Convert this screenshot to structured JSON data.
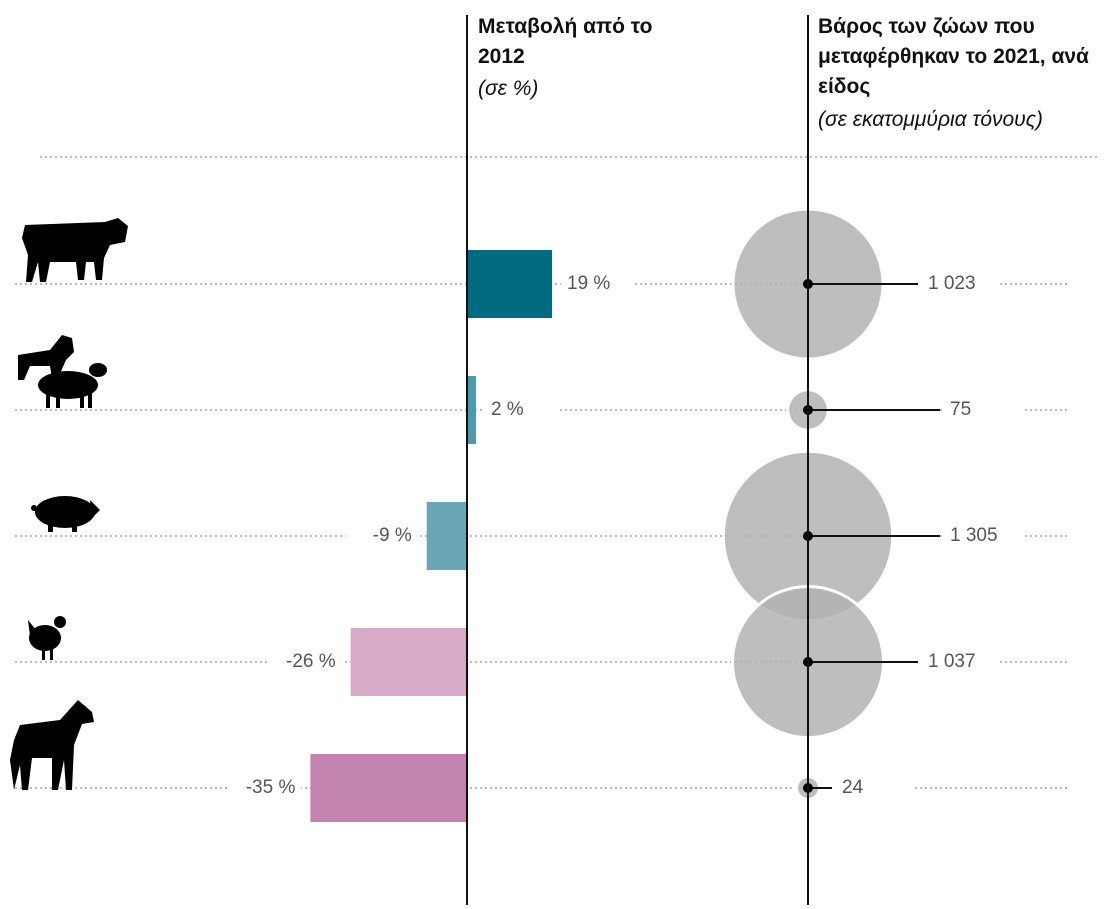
{
  "chart_data": [
    {
      "type": "bar",
      "orientation": "horizontal",
      "title": "Μεταβολή από το 2012",
      "subtitle": "(σε %)",
      "categories": [
        null,
        null,
        null,
        null,
        null
      ],
      "values": [
        19,
        2,
        -9,
        -26,
        -35
      ],
      "value_labels": [
        "19 %",
        "2 %",
        "-9 %",
        "-26 %",
        "-35 %"
      ],
      "colors": [
        "#006a80",
        "#4a9aab",
        "#6aa7b5",
        "#d7aac8",
        "#c283ae"
      ],
      "xlim": [
        -40,
        40
      ]
    },
    {
      "type": "bubble",
      "title": "Βάρος των ζώων που μεταφέρθηκαν το 2021, ανά είδος",
      "subtitle": "(σε εκατομμύρια τόνους)",
      "categories": [
        null,
        null,
        null,
        null,
        null
      ],
      "values": [
        1023,
        75,
        1305,
        1037,
        24
      ],
      "value_labels": [
        "1 023",
        "75",
        "1 305",
        "1 037",
        "24"
      ],
      "color": "#b3b3b3"
    }
  ]
}
